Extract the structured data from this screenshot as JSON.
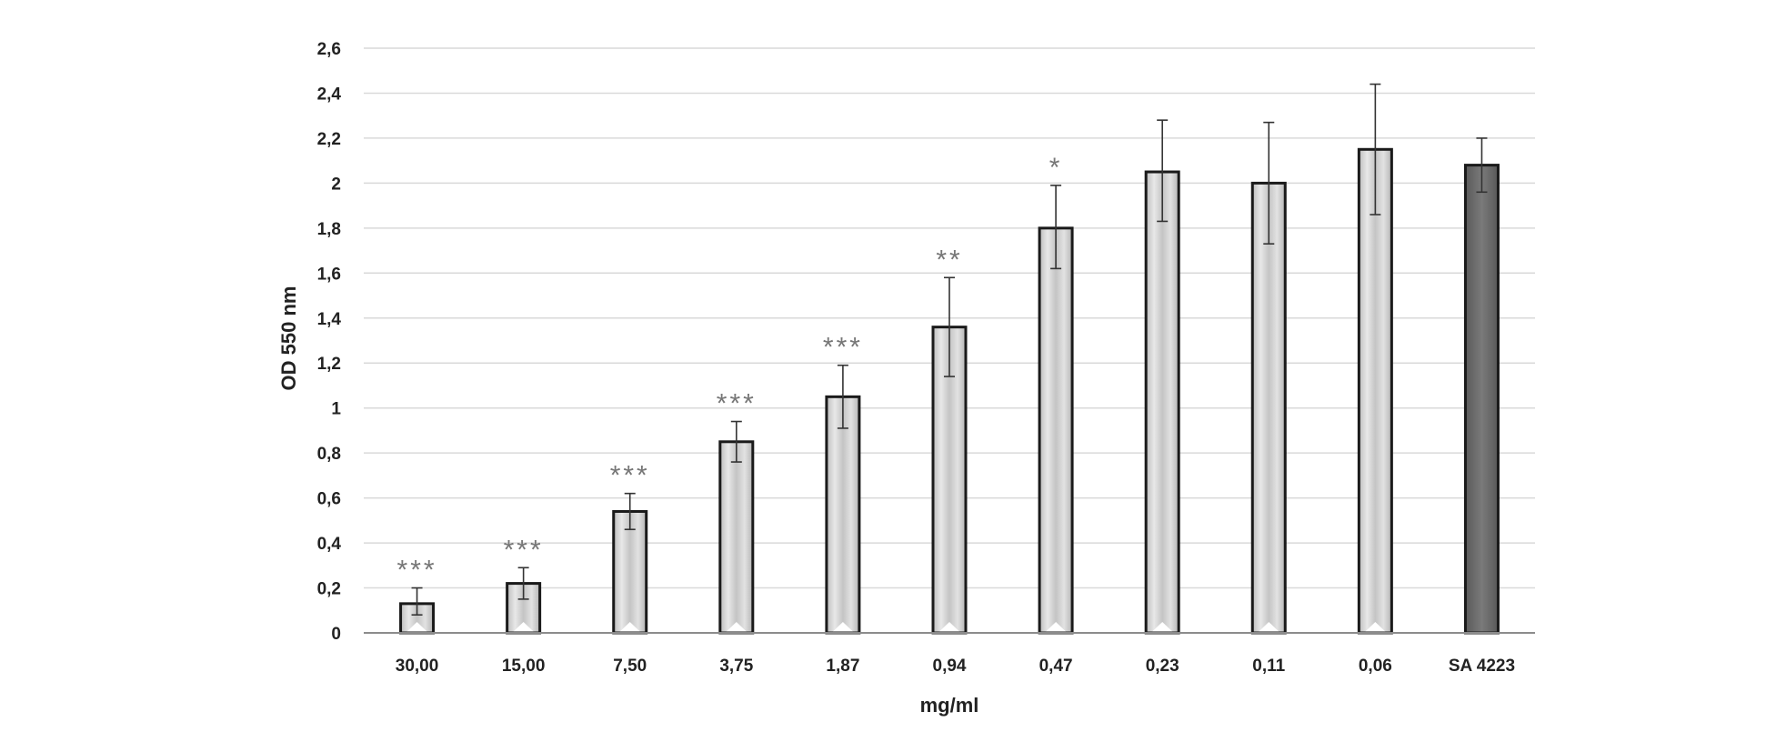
{
  "chart_data": {
    "type": "bar",
    "title": "",
    "xlabel": "mg/ml",
    "ylabel": "OD 550 nm",
    "ylim": [
      0,
      2.6
    ],
    "yticks": [
      "0",
      "0,2",
      "0,4",
      "0,6",
      "0,8",
      "1",
      "1,2",
      "1,4",
      "1,6",
      "1,8",
      "2",
      "2,2",
      "2,4",
      "2,6"
    ],
    "grid": true,
    "categories": [
      "30,00",
      "15,00",
      "7,50",
      "3,75",
      "1,87",
      "0,94",
      "0,47",
      "0,23",
      "0,11",
      "0,06",
      "SA 4223"
    ],
    "values": [
      0.13,
      0.22,
      0.54,
      0.85,
      1.05,
      1.36,
      1.8,
      2.05,
      2.0,
      2.15,
      2.08
    ],
    "error_upper": [
      0.2,
      0.29,
      0.62,
      0.94,
      1.19,
      1.58,
      1.99,
      2.28,
      2.27,
      2.44,
      2.2
    ],
    "error_lower": [
      0.08,
      0.15,
      0.46,
      0.76,
      0.91,
      1.14,
      1.62,
      1.83,
      1.73,
      1.86,
      1.96
    ],
    "significance": [
      "***",
      "***",
      "***",
      "***",
      "***",
      "**",
      "*",
      "",
      "",
      "",
      ""
    ],
    "colors": {
      "bar_fill_light": "#d0d0d0",
      "bar_fill_dark": "#6d6d6d",
      "bar_stroke": "#1a1a1a",
      "grid": "#d9d9d9",
      "significance": "#777777"
    }
  }
}
